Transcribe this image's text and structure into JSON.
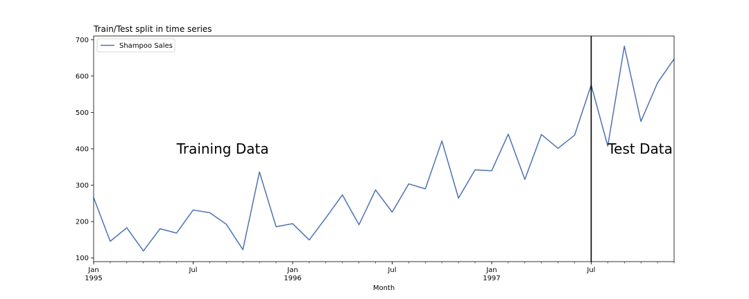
{
  "chart_data": {
    "type": "line",
    "title": "Train/Test split in time series",
    "xlabel": "Month",
    "ylabel": "",
    "ylim": [
      90,
      710
    ],
    "yticks": [
      100,
      200,
      300,
      400,
      500,
      600,
      700
    ],
    "grid": false,
    "legend_position": "top-left",
    "x": [
      "1995-01",
      "1995-02",
      "1995-03",
      "1995-04",
      "1995-05",
      "1995-06",
      "1995-07",
      "1995-08",
      "1995-09",
      "1995-10",
      "1995-11",
      "1995-12",
      "1996-01",
      "1996-02",
      "1996-03",
      "1996-04",
      "1996-05",
      "1996-06",
      "1996-07",
      "1996-08",
      "1996-09",
      "1996-10",
      "1996-11",
      "1996-12",
      "1997-01",
      "1997-02",
      "1997-03",
      "1997-04",
      "1997-05",
      "1997-06",
      "1997-07",
      "1997-08",
      "1997-09",
      "1997-10",
      "1997-11",
      "1997-12"
    ],
    "xlim": [
      "1995-01",
      "1997-12"
    ],
    "series": [
      {
        "name": "Shampoo Sales",
        "color": "#4c72b0",
        "values": [
          266.0,
          145.9,
          183.1,
          119.3,
          180.3,
          168.5,
          231.8,
          224.5,
          192.8,
          122.9,
          336.5,
          185.9,
          194.3,
          149.5,
          210.1,
          273.3,
          191.4,
          287.0,
          226.0,
          303.6,
          289.9,
          421.6,
          264.5,
          342.3,
          339.7,
          440.4,
          315.9,
          439.3,
          401.3,
          437.4,
          575.5,
          407.6,
          682.0,
          475.3,
          581.3,
          646.9
        ]
      }
    ],
    "xtick_labels": [
      {
        "x": "1995-01",
        "line1": "Jan",
        "line2": "1995"
      },
      {
        "x": "1995-07",
        "line1": "Jul",
        "line2": ""
      },
      {
        "x": "1996-01",
        "line1": "Jan",
        "line2": "1996"
      },
      {
        "x": "1996-07",
        "line1": "Jul",
        "line2": ""
      },
      {
        "x": "1997-01",
        "line1": "Jan",
        "line2": "1997"
      },
      {
        "x": "1997-07",
        "line1": "Jul",
        "line2": ""
      }
    ],
    "split_line": {
      "x": "1997-07",
      "color": "#000000"
    },
    "annotations": [
      {
        "text": "Training Data",
        "x": "1995-06",
        "y": 400
      },
      {
        "text": "Test Data",
        "x": "1997-08",
        "y": 400
      }
    ]
  }
}
